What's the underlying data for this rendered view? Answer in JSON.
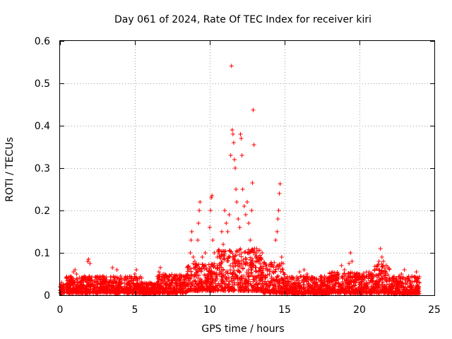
{
  "chart_data": {
    "type": "scatter",
    "title": "Day 061 of 2024, Rate Of TEC Index for receiver kiri",
    "xlabel": "GPS time / hours",
    "ylabel": "ROTI / TECUs",
    "xlim": [
      0,
      25
    ],
    "ylim": [
      0,
      0.6
    ],
    "grid": true,
    "marker": "+",
    "marker_color": "#ff0000",
    "x_ticks": [
      0,
      5,
      10,
      15,
      20,
      25
    ],
    "y_ticks": [
      0,
      0.1,
      0.2,
      0.3,
      0.4,
      0.5,
      0.6
    ],
    "x_tick_labels": [
      "0",
      "5",
      "10",
      "15",
      "20",
      "25"
    ],
    "y_tick_labels": [
      "0",
      "0.1",
      "0.2",
      "0.3",
      "0.4",
      "0.5",
      "0.6"
    ],
    "series": [
      {
        "name": "ROTI",
        "points": [
          [
            0.0,
            0.02
          ],
          [
            0.05,
            0.025
          ],
          [
            0.1,
            0.015
          ],
          [
            0.1,
            0.03
          ],
          [
            0.15,
            0.01
          ],
          [
            0.5,
            0.02
          ],
          [
            0.6,
            0.03
          ],
          [
            0.7,
            0.045
          ],
          [
            0.8,
            0.04
          ],
          [
            0.9,
            0.055
          ],
          [
            1.0,
            0.06
          ],
          [
            1.1,
            0.05
          ],
          [
            1.2,
            0.03
          ],
          [
            1.5,
            0.025
          ],
          [
            1.8,
            0.03
          ],
          [
            1.85,
            0.08
          ],
          [
            1.9,
            0.085
          ],
          [
            2.0,
            0.075
          ],
          [
            2.2,
            0.03
          ],
          [
            2.5,
            0.025
          ],
          [
            2.8,
            0.03
          ],
          [
            3.0,
            0.035
          ],
          [
            3.3,
            0.03
          ],
          [
            3.5,
            0.065
          ],
          [
            3.8,
            0.06
          ],
          [
            4.0,
            0.03
          ],
          [
            4.3,
            0.035
          ],
          [
            4.5,
            0.025
          ],
          [
            4.8,
            0.03
          ],
          [
            5.0,
            0.05
          ],
          [
            5.1,
            0.06
          ],
          [
            5.5,
            0.02
          ],
          [
            6.0,
            0.015
          ],
          [
            6.3,
            0.025
          ],
          [
            6.5,
            0.03
          ],
          [
            6.6,
            0.055
          ],
          [
            6.7,
            0.065
          ],
          [
            6.9,
            0.03
          ],
          [
            7.2,
            0.04
          ],
          [
            7.5,
            0.035
          ],
          [
            7.7,
            0.045
          ],
          [
            8.0,
            0.04
          ],
          [
            8.3,
            0.045
          ],
          [
            8.5,
            0.05
          ],
          [
            8.6,
            0.065
          ],
          [
            8.7,
            0.1
          ],
          [
            8.75,
            0.13
          ],
          [
            8.8,
            0.15
          ],
          [
            8.9,
            0.09
          ],
          [
            9.0,
            0.08
          ],
          [
            9.2,
            0.13
          ],
          [
            9.25,
            0.17
          ],
          [
            9.3,
            0.2
          ],
          [
            9.35,
            0.22
          ],
          [
            9.5,
            0.09
          ],
          [
            9.7,
            0.1
          ],
          [
            9.8,
            0.06
          ],
          [
            10.0,
            0.16
          ],
          [
            10.05,
            0.2
          ],
          [
            10.1,
            0.23
          ],
          [
            10.15,
            0.235
          ],
          [
            10.2,
            0.13
          ],
          [
            10.3,
            0.1
          ],
          [
            10.5,
            0.07
          ],
          [
            10.7,
            0.09
          ],
          [
            10.8,
            0.15
          ],
          [
            10.9,
            0.12
          ],
          [
            11.0,
            0.2
          ],
          [
            11.1,
            0.17
          ],
          [
            11.2,
            0.15
          ],
          [
            11.3,
            0.19
          ],
          [
            11.4,
            0.33
          ],
          [
            11.45,
            0.541
          ],
          [
            11.5,
            0.39
          ],
          [
            11.55,
            0.38
          ],
          [
            11.6,
            0.36
          ],
          [
            11.65,
            0.32
          ],
          [
            11.7,
            0.3
          ],
          [
            11.75,
            0.25
          ],
          [
            11.8,
            0.22
          ],
          [
            11.9,
            0.18
          ],
          [
            12.0,
            0.16
          ],
          [
            12.05,
            0.38
          ],
          [
            12.1,
            0.37
          ],
          [
            12.15,
            0.33
          ],
          [
            12.2,
            0.25
          ],
          [
            12.3,
            0.21
          ],
          [
            12.4,
            0.19
          ],
          [
            12.5,
            0.22
          ],
          [
            12.6,
            0.17
          ],
          [
            12.7,
            0.13
          ],
          [
            12.8,
            0.2
          ],
          [
            12.85,
            0.265
          ],
          [
            12.9,
            0.437
          ],
          [
            12.95,
            0.355
          ],
          [
            13.0,
            0.11
          ],
          [
            13.1,
            0.09
          ],
          [
            13.3,
            0.08
          ],
          [
            13.5,
            0.1
          ],
          [
            13.8,
            0.07
          ],
          [
            14.0,
            0.06
          ],
          [
            14.2,
            0.07
          ],
          [
            14.4,
            0.13
          ],
          [
            14.5,
            0.15
          ],
          [
            14.55,
            0.18
          ],
          [
            14.6,
            0.2
          ],
          [
            14.65,
            0.24
          ],
          [
            14.7,
            0.263
          ],
          [
            14.8,
            0.09
          ],
          [
            14.9,
            0.075
          ],
          [
            15.0,
            0.05
          ],
          [
            15.5,
            0.04
          ],
          [
            16.0,
            0.055
          ],
          [
            16.3,
            0.06
          ],
          [
            16.5,
            0.05
          ],
          [
            16.8,
            0.035
          ],
          [
            17.0,
            0.04
          ],
          [
            17.5,
            0.03
          ],
          [
            18.0,
            0.04
          ],
          [
            18.5,
            0.05
          ],
          [
            18.8,
            0.07
          ],
          [
            19.0,
            0.06
          ],
          [
            19.3,
            0.075
          ],
          [
            19.4,
            0.1
          ],
          [
            19.5,
            0.08
          ],
          [
            19.8,
            0.05
          ],
          [
            20.0,
            0.04
          ],
          [
            20.5,
            0.045
          ],
          [
            20.8,
            0.04
          ],
          [
            21.0,
            0.06
          ],
          [
            21.2,
            0.07
          ],
          [
            21.3,
            0.08
          ],
          [
            21.4,
            0.11
          ],
          [
            21.5,
            0.09
          ],
          [
            21.6,
            0.08
          ],
          [
            22.0,
            0.04
          ],
          [
            22.5,
            0.035
          ],
          [
            22.8,
            0.05
          ],
          [
            23.0,
            0.06
          ],
          [
            23.3,
            0.04
          ],
          [
            23.5,
            0.045
          ],
          [
            23.8,
            0.055
          ],
          [
            24.0,
            0.03
          ]
        ]
      }
    ],
    "background_band": {
      "description": "dense cloud of points near the baseline across the whole day",
      "segments": [
        [
          0.0,
          0.3,
          0.005,
          0.025
        ],
        [
          0.4,
          5.5,
          0.005,
          0.045
        ],
        [
          5.5,
          6.5,
          0.003,
          0.03
        ],
        [
          6.5,
          8.5,
          0.005,
          0.05
        ],
        [
          8.5,
          10.5,
          0.01,
          0.075
        ],
        [
          10.5,
          13.5,
          0.01,
          0.11
        ],
        [
          13.5,
          15.0,
          0.005,
          0.08
        ],
        [
          15.0,
          18.0,
          0.003,
          0.045
        ],
        [
          18.0,
          21.0,
          0.005,
          0.055
        ],
        [
          21.0,
          22.0,
          0.005,
          0.075
        ],
        [
          22.0,
          24.0,
          0.003,
          0.045
        ]
      ]
    }
  }
}
